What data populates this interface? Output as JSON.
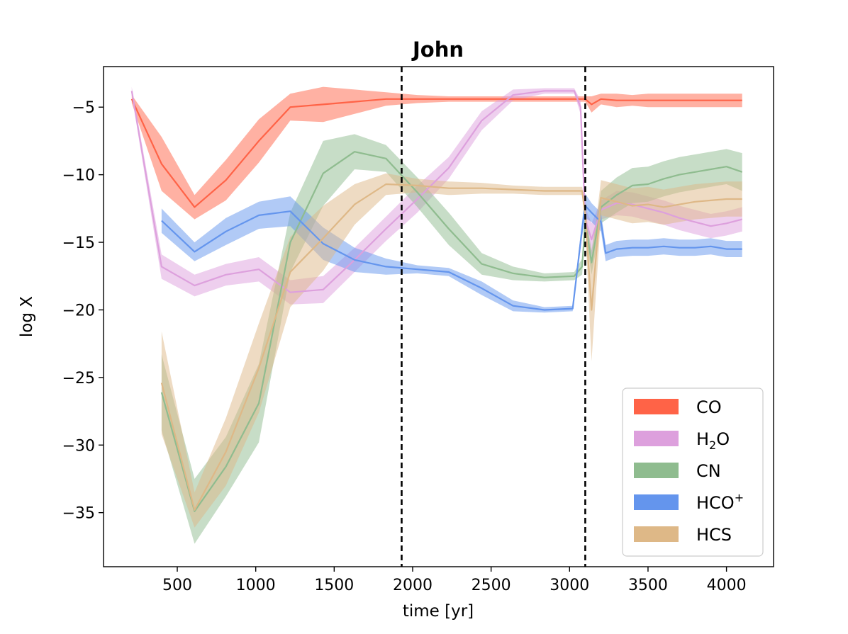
{
  "chart_data": {
    "type": "line",
    "title": "John",
    "xlabel": "time [yr]",
    "ylabel": "log X",
    "xlim": [
      30,
      4300
    ],
    "ylim": [
      -39,
      -2
    ],
    "xticks": [
      500,
      1000,
      1500,
      2000,
      2500,
      3000,
      3500,
      4000
    ],
    "yticks": [
      -5,
      -10,
      -15,
      -20,
      -25,
      -30,
      -35
    ],
    "ytick_labels": [
      "−5",
      "−10",
      "−15",
      "−20",
      "−25",
      "−30",
      "−35"
    ],
    "grid": false,
    "legend_position": "lower-right",
    "vlines": [
      1930,
      3100
    ],
    "series": [
      {
        "name": "CO",
        "legend_base": "CO",
        "legend_sub": "",
        "legend_sup": "",
        "legend_tail": "",
        "color": "#ff6347",
        "x": [
          210,
          400,
          610,
          810,
          1020,
          1220,
          1430,
          1630,
          1830,
          2030,
          2230,
          2440,
          2640,
          2840,
          3030,
          3100,
          3140,
          3200,
          3300,
          3400,
          3500,
          3600,
          3700,
          3800,
          3900,
          4000,
          4100
        ],
        "y": [
          -4.4,
          -9.2,
          -12.4,
          -10.4,
          -7.5,
          -5.0,
          -4.8,
          -4.6,
          -4.4,
          -4.4,
          -4.4,
          -4.4,
          -4.4,
          -4.4,
          -4.4,
          -4.4,
          -4.8,
          -4.4,
          -4.5,
          -4.5,
          -4.5,
          -4.5,
          -4.5,
          -4.5,
          -4.5,
          -4.5,
          -4.5
        ],
        "err": [
          0.3,
          2.0,
          0.9,
          1.5,
          1.6,
          1.0,
          1.3,
          0.9,
          0.5,
          0.3,
          0.2,
          0.2,
          0.2,
          0.2,
          0.2,
          0.2,
          0.6,
          0.4,
          0.5,
          0.4,
          0.5,
          0.5,
          0.5,
          0.5,
          0.5,
          0.5,
          0.5
        ]
      },
      {
        "name": "H2O",
        "legend_base": "H",
        "legend_sub": "2",
        "legend_sup": "",
        "legend_tail": "O",
        "color": "#dda0dd",
        "x": [
          210,
          400,
          610,
          810,
          1020,
          1220,
          1430,
          1630,
          1830,
          2030,
          2230,
          2440,
          2640,
          2840,
          3030,
          3070,
          3100,
          3140,
          3200,
          3300,
          3400,
          3500,
          3600,
          3700,
          3800,
          3900,
          4000,
          4100
        ],
        "y": [
          -3.8,
          -16.8,
          -18.2,
          -17.4,
          -17.0,
          -18.7,
          -18.5,
          -16.3,
          -14.0,
          -11.8,
          -9.5,
          -6.0,
          -4.1,
          -3.8,
          -3.8,
          -5.0,
          -13.3,
          -14.8,
          -12.6,
          -12.1,
          -12.2,
          -12.5,
          -12.8,
          -13.2,
          -13.5,
          -13.8,
          -13.6,
          -13.3
        ],
        "err": [
          0.3,
          0.9,
          0.8,
          0.8,
          0.9,
          0.9,
          1.0,
          0.9,
          0.9,
          1.0,
          0.8,
          0.7,
          0.4,
          0.2,
          0.2,
          0.5,
          0.9,
          1.2,
          0.7,
          0.9,
          0.9,
          0.9,
          0.9,
          0.9,
          0.9,
          0.9,
          0.9,
          0.9
        ]
      },
      {
        "name": "CN",
        "legend_base": "CN",
        "legend_sub": "",
        "legend_sup": "",
        "legend_tail": "",
        "color": "#8fbc8f",
        "x": [
          400,
          610,
          810,
          1020,
          1220,
          1430,
          1630,
          1830,
          2030,
          2230,
          2440,
          2640,
          2840,
          3030,
          3080,
          3100,
          3140,
          3200,
          3300,
          3400,
          3500,
          3600,
          3700,
          3800,
          3900,
          4000,
          4100
        ],
        "y": [
          -26.1,
          -34.9,
          -31.6,
          -26.9,
          -15.0,
          -9.9,
          -8.3,
          -8.8,
          -11.3,
          -14.0,
          -16.6,
          -17.3,
          -17.6,
          -17.5,
          -16.8,
          -13.5,
          -16.5,
          -12.4,
          -11.5,
          -10.8,
          -10.7,
          -10.3,
          -10.0,
          -9.8,
          -9.6,
          -9.4,
          -9.8
        ],
        "err": [
          2.8,
          2.4,
          2.2,
          2.9,
          2.2,
          2.4,
          1.3,
          1.0,
          1.1,
          1.2,
          0.8,
          0.5,
          0.3,
          0.3,
          0.6,
          0.8,
          0.9,
          1.2,
          1.3,
          1.3,
          1.3,
          1.3,
          1.3,
          1.3,
          1.3,
          1.3,
          1.4
        ]
      },
      {
        "name": "HCO+",
        "legend_base": "HCO",
        "legend_sub": "",
        "legend_sup": "+",
        "legend_tail": "",
        "color": "#6495ed",
        "x": [
          400,
          610,
          810,
          1020,
          1220,
          1430,
          1630,
          1830,
          2030,
          2230,
          2440,
          2640,
          2840,
          3020,
          3080,
          3100,
          3140,
          3200,
          3230,
          3300,
          3400,
          3500,
          3600,
          3700,
          3800,
          3900,
          4000,
          4100
        ],
        "y": [
          -13.4,
          -15.7,
          -14.2,
          -13.0,
          -12.7,
          -15.1,
          -16.3,
          -16.8,
          -17.0,
          -17.2,
          -18.4,
          -19.7,
          -20.0,
          -19.9,
          -14.0,
          -12.3,
          -12.8,
          -13.5,
          -15.8,
          -15.5,
          -15.4,
          -15.4,
          -15.3,
          -15.4,
          -15.4,
          -15.3,
          -15.5,
          -15.5
        ],
        "err": [
          0.9,
          0.7,
          1.0,
          1.0,
          1.1,
          1.2,
          0.9,
          0.6,
          0.3,
          0.3,
          0.5,
          0.4,
          0.2,
          0.2,
          0.6,
          0.9,
          0.7,
          0.7,
          0.6,
          0.6,
          0.6,
          0.6,
          0.6,
          0.6,
          0.6,
          0.6,
          0.6,
          0.6
        ]
      },
      {
        "name": "HCS",
        "legend_base": "HCS",
        "legend_sub": "",
        "legend_sup": "",
        "legend_tail": "",
        "color": "#deb887",
        "x": [
          400,
          610,
          810,
          1020,
          1220,
          1430,
          1630,
          1830,
          2030,
          2230,
          2440,
          2640,
          2840,
          3030,
          3080,
          3100,
          3140,
          3200,
          3300,
          3400,
          3500,
          3600,
          3700,
          3800,
          3900,
          4000,
          4100
        ],
        "y": [
          -25.4,
          -34.8,
          -30.5,
          -24.3,
          -17.2,
          -14.7,
          -12.2,
          -10.7,
          -10.8,
          -11.0,
          -11.0,
          -11.1,
          -11.2,
          -11.2,
          -11.2,
          -13.0,
          -20.0,
          -11.7,
          -12.0,
          -12.3,
          -12.2,
          -12.4,
          -12.2,
          -12.0,
          -11.9,
          -11.8,
          -11.8
        ],
        "err": [
          3.8,
          1.3,
          2.5,
          3.3,
          2.6,
          2.4,
          1.5,
          0.8,
          0.5,
          0.5,
          0.4,
          0.3,
          0.3,
          0.3,
          0.3,
          0.8,
          3.8,
          1.3,
          1.3,
          1.3,
          1.3,
          1.3,
          1.3,
          1.3,
          1.3,
          1.3,
          1.3
        ]
      }
    ]
  }
}
